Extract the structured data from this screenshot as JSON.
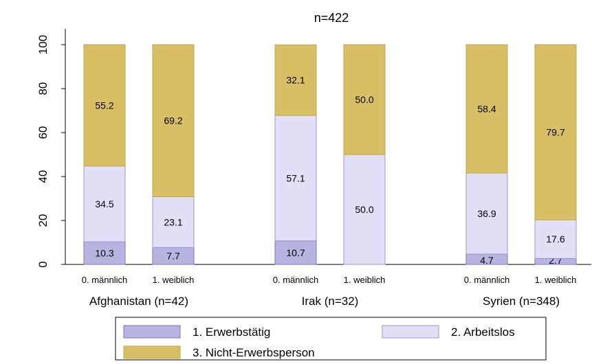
{
  "chart_data": {
    "type": "bar",
    "stacked": true,
    "title": "n=422",
    "ylim": [
      0,
      100
    ],
    "yticks": [
      "0",
      "20",
      "40",
      "60",
      "80",
      "100"
    ],
    "groups": [
      {
        "label": "Afghanistan (n=42)",
        "bars": [
          {
            "label": "0. männlich",
            "values": [
              10.3,
              34.5,
              55.2
            ],
            "labels": [
              "10.3",
              "34.5",
              "55.2"
            ]
          },
          {
            "label": "1. weiblich",
            "values": [
              7.7,
              23.1,
              69.2
            ],
            "labels": [
              "7.7",
              "23.1",
              "69.2"
            ]
          }
        ]
      },
      {
        "label": "Irak (n=32)",
        "bars": [
          {
            "label": "0. männlich",
            "values": [
              10.7,
              57.1,
              32.1
            ],
            "labels": [
              "10.7",
              "57.1",
              "32.1"
            ]
          },
          {
            "label": "1. weiblich",
            "values": [
              0,
              50.0,
              50.0
            ],
            "labels": [
              "",
              "50.0",
              "50.0"
            ]
          }
        ]
      },
      {
        "label": "Syrien (n=348)",
        "bars": [
          {
            "label": "0. männlich",
            "values": [
              4.7,
              36.9,
              58.4
            ],
            "labels": [
              "4.7",
              "36.9",
              "58.4"
            ]
          },
          {
            "label": "1. weiblich",
            "values": [
              2.7,
              17.6,
              79.7
            ],
            "labels": [
              "2.7",
              "17.6",
              "79.7"
            ]
          }
        ]
      }
    ],
    "series": [
      {
        "name": "1. Erwerbstätig",
        "color": "#b8b4e0"
      },
      {
        "name": "2. Arbeitslos",
        "color": "#e0dff5"
      },
      {
        "name": "3. Nicht-Erwerbsperson",
        "color": "#d8be64"
      }
    ],
    "legend_position": "bottom",
    "grid": false
  }
}
